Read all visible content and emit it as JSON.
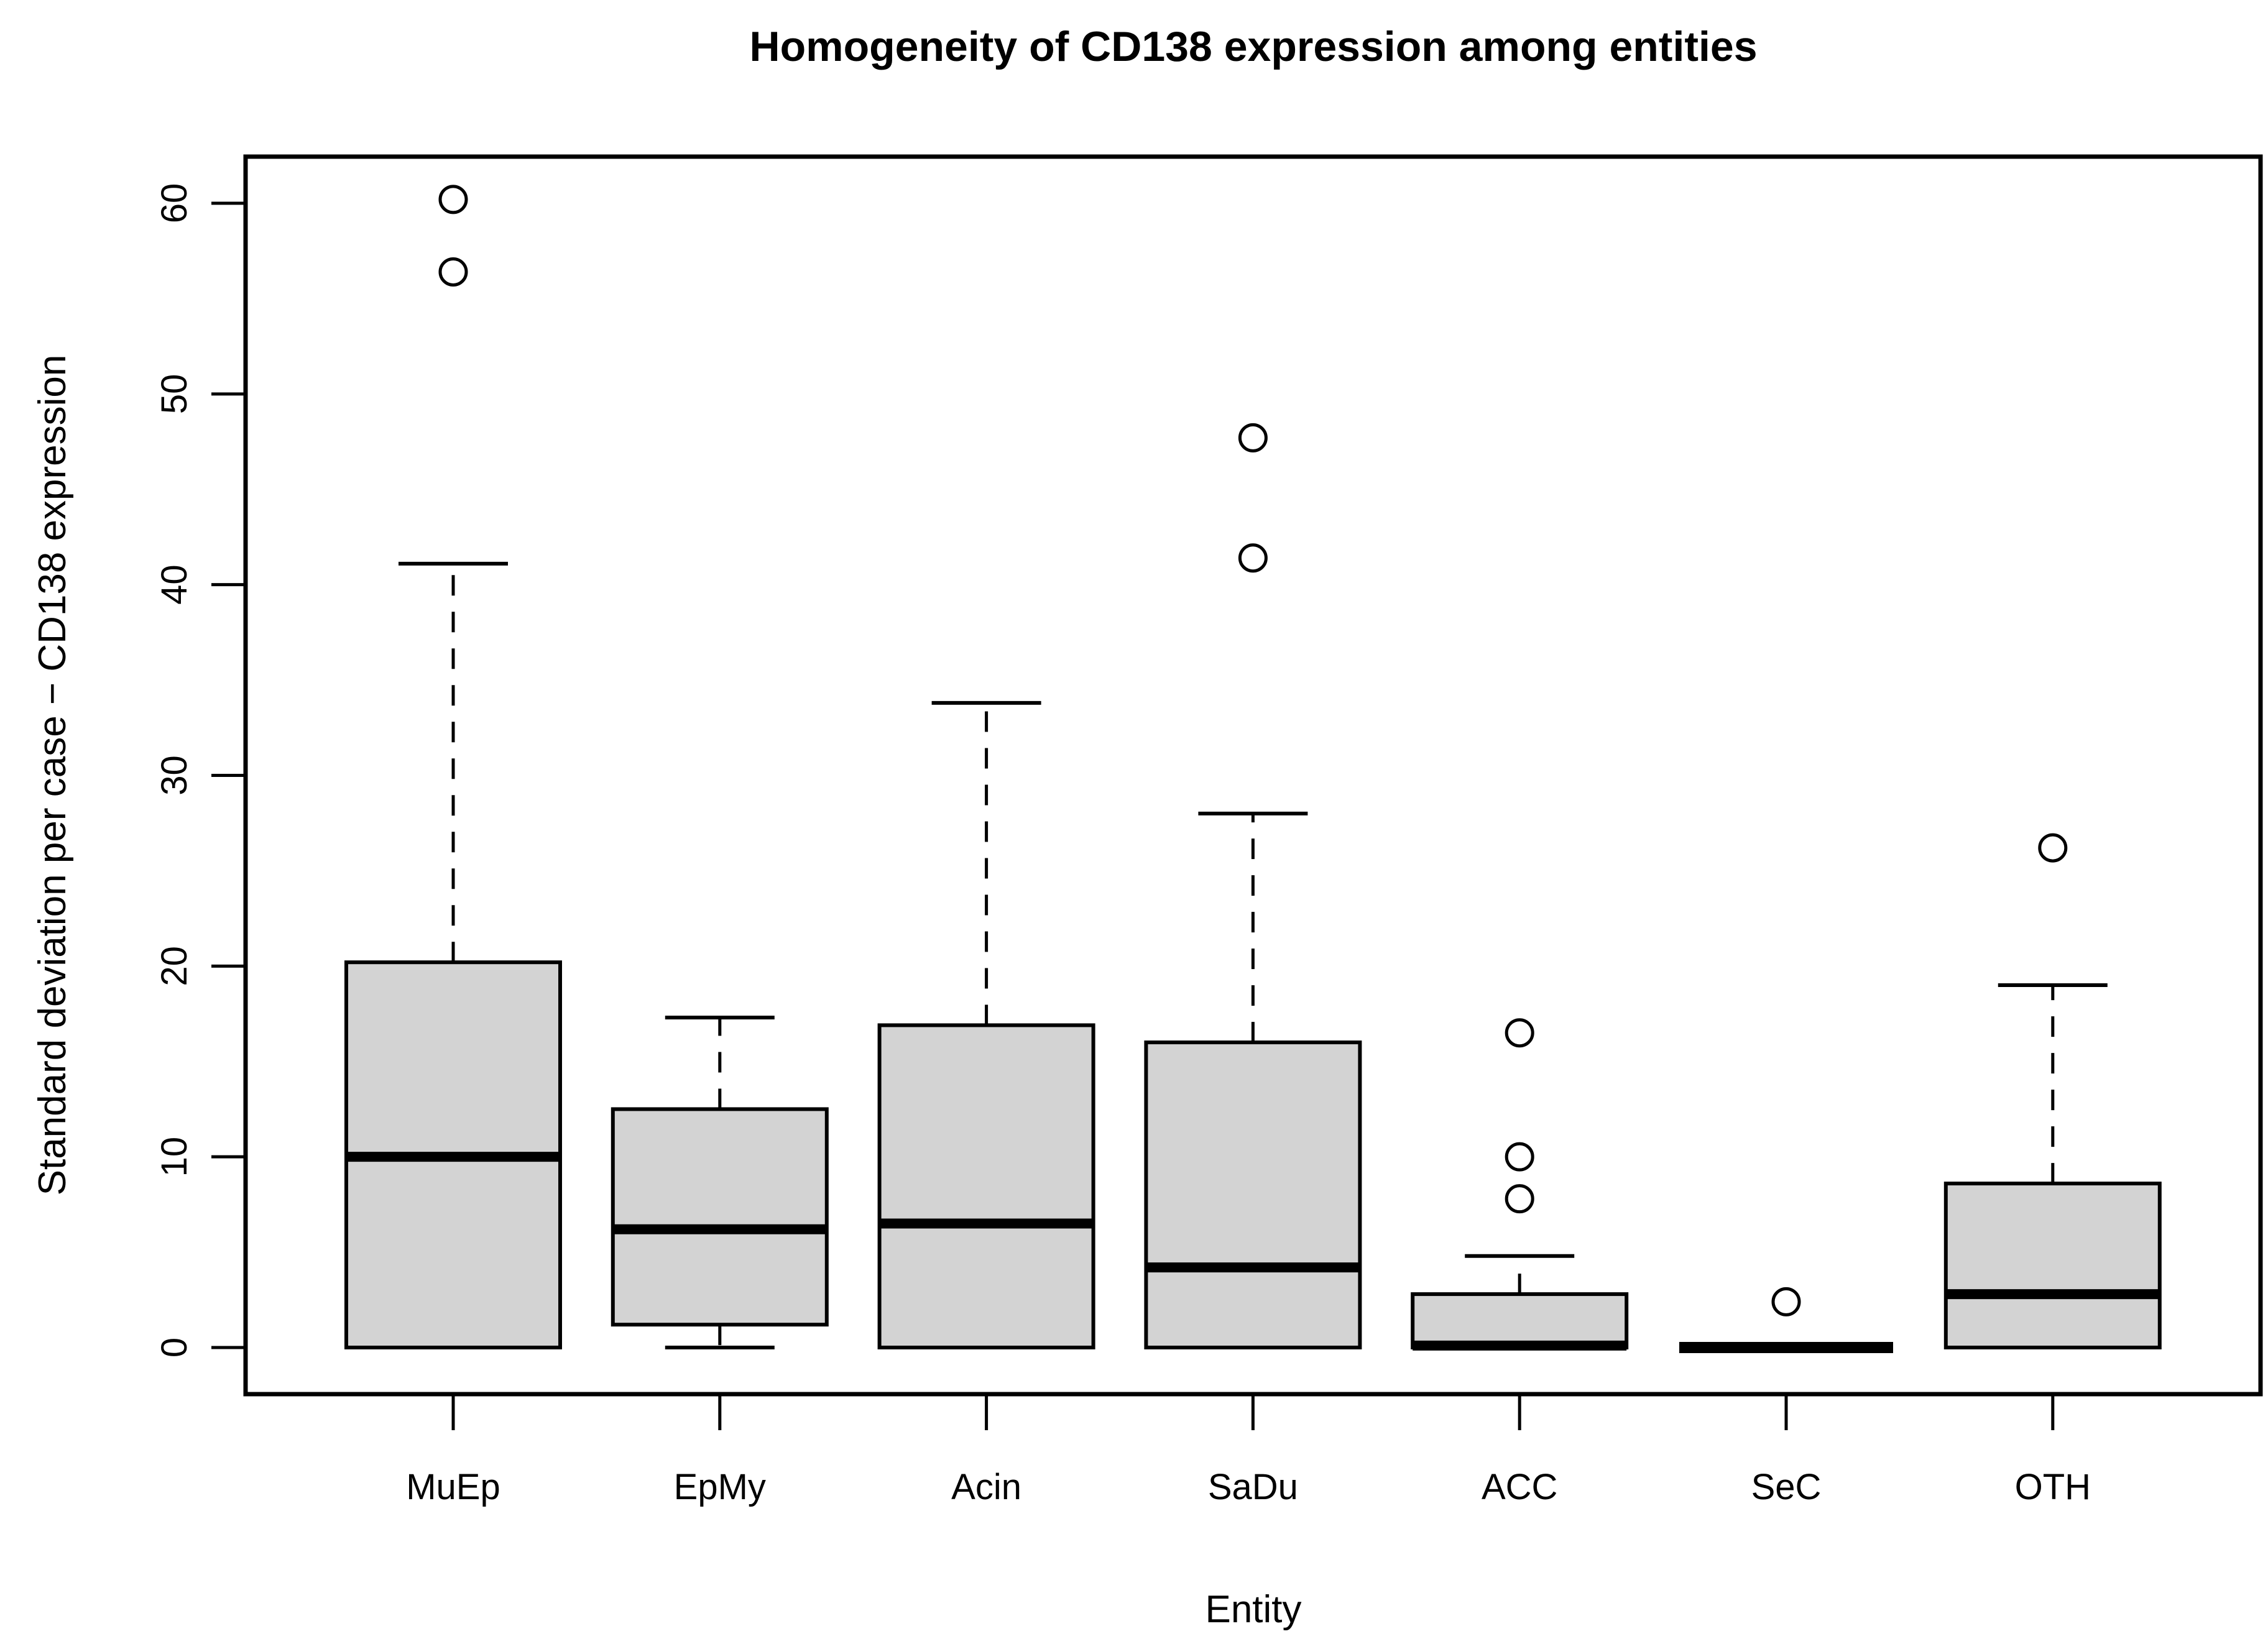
{
  "page": {
    "background": "#ffffff"
  },
  "chart_data": {
    "type": "boxplot",
    "title": "Homogeneity of CD138 expression among entities",
    "xlabel": "Entity",
    "ylabel": "Standard deviation per case − CD138 expression",
    "categories": [
      "MuEp",
      "EpMy",
      "Acin",
      "SaDu",
      "ACC",
      "SeC",
      "OTH"
    ],
    "y_ticks": [
      0,
      10,
      20,
      30,
      40,
      50,
      60
    ],
    "ylim": [
      -2.4,
      62.5
    ],
    "grid": false,
    "legend": "none",
    "box_fill": "#d3d3d3",
    "line_color": "#000000",
    "series": [
      {
        "name": "MuEp",
        "whisker_low": 0,
        "q1": 0,
        "median": 10.0,
        "q3": 20.2,
        "whisker_high": 41.1,
        "outliers": [
          56.4,
          60.2
        ]
      },
      {
        "name": "EpMy",
        "whisker_low": 0,
        "q1": 1.2,
        "median": 6.2,
        "q3": 12.5,
        "whisker_high": 17.3,
        "outliers": []
      },
      {
        "name": "Acin",
        "whisker_low": 0,
        "q1": 0,
        "median": 6.5,
        "q3": 16.9,
        "whisker_high": 33.8,
        "outliers": []
      },
      {
        "name": "SaDu",
        "whisker_low": 0,
        "q1": 0,
        "median": 4.2,
        "q3": 16.0,
        "whisker_high": 28.0,
        "outliers": [
          41.4,
          47.7
        ]
      },
      {
        "name": "ACC",
        "whisker_low": 0,
        "q1": 0,
        "median": 0.1,
        "q3": 2.8,
        "whisker_high": 4.8,
        "outliers": [
          7.8,
          10.0,
          16.5
        ]
      },
      {
        "name": "SeC",
        "whisker_low": 0,
        "q1": 0,
        "median": 0.0,
        "q3": 0.0,
        "whisker_high": 0.0,
        "outliers": [
          2.4
        ]
      },
      {
        "name": "OTH",
        "whisker_low": 0,
        "q1": 0,
        "median": 2.8,
        "q3": 8.6,
        "whisker_high": 19.0,
        "outliers": [
          26.2
        ]
      }
    ]
  }
}
